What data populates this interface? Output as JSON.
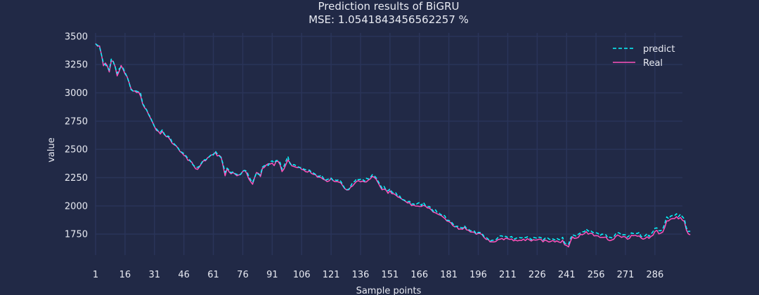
{
  "chart_data": {
    "type": "line",
    "title": "Prediction results of BiGRU",
    "subtitle": "MSE: 1.0541843456562257 %",
    "xlabel": "Sample points",
    "ylabel": "value",
    "xlim": [
      1,
      300
    ],
    "ylim": [
      1565,
      3530
    ],
    "x_ticks": [
      "1",
      "16",
      "31",
      "46",
      "61",
      "76",
      "91",
      "106",
      "121",
      "136",
      "151",
      "166",
      "181",
      "196",
      "211",
      "226",
      "241",
      "256",
      "271",
      "286"
    ],
    "y_ticks": [
      "1750",
      "2000",
      "2250",
      "2500",
      "2750",
      "3000",
      "3250",
      "3500"
    ],
    "grid": true,
    "legend_position": "top-right",
    "colors": {
      "background": "#212946",
      "grid": "#2A3459",
      "text": "#e8eaf2",
      "predict": "#08F7FE",
      "real": "#FE53BB"
    },
    "series": [
      {
        "name": "predict",
        "style": "dashed",
        "values": [
          3432,
          3421,
          3407,
          3335,
          3263,
          3248,
          3229,
          3201,
          3298,
          3275,
          3228,
          3172,
          3212,
          3228,
          3220,
          3179,
          3143,
          3095,
          3030,
          3016,
          3021,
          3014,
          3008,
          2993,
          2904,
          2877,
          2849,
          2811,
          2783,
          2739,
          2702,
          2681,
          2660,
          2652,
          2672,
          2637,
          2613,
          2618,
          2604,
          2562,
          2550,
          2532,
          2513,
          2484,
          2474,
          2462,
          2443,
          2421,
          2405,
          2376,
          2358,
          2342,
          2341,
          2352,
          2380,
          2408,
          2406,
          2419,
          2436,
          2459,
          2450,
          2485,
          2460,
          2444,
          2425,
          2369,
          2295,
          2334,
          2317,
          2293,
          2301,
          2285,
          2279,
          2269,
          2282,
          2310,
          2314,
          2308,
          2265,
          2231,
          2208,
          2251,
          2292,
          2279,
          2275,
          2343,
          2356,
          2356,
          2358,
          2389,
          2399,
          2381,
          2401,
          2401,
          2384,
          2323,
          2353,
          2396,
          2437,
          2375,
          2356,
          2366,
          2357,
          2348,
          2340,
          2337,
          2326,
          2320,
          2317,
          2316,
          2297,
          2291,
          2280,
          2265,
          2261,
          2273,
          2247,
          2226,
          2234,
          2239,
          2247,
          2225,
          2229,
          2225,
          2232,
          2215,
          2185,
          2153,
          2144,
          2147,
          2175,
          2208,
          2216,
          2240,
          2231,
          2235,
          2238,
          2218,
          2245,
          2237,
          2251,
          2276,
          2266,
          2248,
          2218,
          2186,
          2156,
          2172,
          2140,
          2133,
          2150,
          2123,
          2111,
          2115,
          2083,
          2087,
          2055,
          2054,
          2044,
          2038,
          2041,
          2015,
          2018,
          2007,
          2022,
          2029,
          2004,
          2031,
          2004,
          1993,
          1995,
          1982,
          1952,
          1970,
          1944,
          1938,
          1921,
          1923,
          1910,
          1874,
          1872,
          1863,
          1843,
          1816,
          1820,
          1818,
          1809,
          1803,
          1824,
          1800,
          1793,
          1781,
          1777,
          1777,
          1751,
          1766,
          1765,
          1752,
          1728,
          1721,
          1707,
          1687,
          1696,
          1696,
          1701,
          1720,
          1735,
          1735,
          1723,
          1731,
          1720,
          1723,
          1729,
          1704,
          1712,
          1719,
          1720,
          1716,
          1723,
          1719,
          1726,
          1720,
          1700,
          1722,
          1718,
          1713,
          1723,
          1719,
          1697,
          1713,
          1721,
          1707,
          1700,
          1708,
          1698,
          1714,
          1702,
          1703,
          1722,
          1673,
          1660,
          1661,
          1711,
          1744,
          1738,
          1731,
          1750,
          1760,
          1771,
          1771,
          1795,
          1777,
          1785,
          1770,
          1761,
          1762,
          1757,
          1737,
          1751,
          1746,
          1745,
          1716,
          1723,
          1717,
          1725,
          1754,
          1764,
          1759,
          1741,
          1746,
          1744,
          1723,
          1739,
          1761,
          1755,
          1757,
          1756,
          1765,
          1728,
          1728,
          1735,
          1755,
          1730,
          1749,
          1772,
          1802,
          1805,
          1781,
          1780,
          1795,
          1844,
          1903,
          1886,
          1909,
          1916,
          1914,
          1931,
          1904,
          1926,
          1904,
          1885,
          1807,
          1774,
          1776
        ]
      },
      {
        "name": "Real",
        "style": "solid",
        "values": [
          3437,
          3413,
          3415,
          3338,
          3240,
          3264,
          3237,
          3185,
          3283,
          3279,
          3231,
          3150,
          3190,
          3242,
          3209,
          3168,
          3145,
          3095,
          3038,
          3016,
          3016,
          3002,
          3006,
          2970,
          2902,
          2868,
          2849,
          2808,
          2775,
          2741,
          2702,
          2668,
          2660,
          2636,
          2660,
          2633,
          2613,
          2611,
          2586,
          2555,
          2541,
          2532,
          2510,
          2482,
          2469,
          2447,
          2438,
          2404,
          2402,
          2387,
          2355,
          2328,
          2323,
          2347,
          2376,
          2400,
          2399,
          2424,
          2437,
          2450,
          2456,
          2473,
          2442,
          2447,
          2431,
          2351,
          2266,
          2329,
          2302,
          2284,
          2295,
          2282,
          2267,
          2274,
          2280,
          2305,
          2314,
          2289,
          2242,
          2215,
          2191,
          2248,
          2295,
          2287,
          2259,
          2332,
          2341,
          2362,
          2373,
          2371,
          2378,
          2356,
          2394,
          2394,
          2366,
          2303,
          2327,
          2367,
          2407,
          2382,
          2354,
          2349,
          2343,
          2338,
          2342,
          2323,
          2319,
          2303,
          2299,
          2310,
          2287,
          2279,
          2277,
          2254,
          2254,
          2249,
          2236,
          2229,
          2215,
          2221,
          2244,
          2224,
          2214,
          2216,
          2210,
          2203,
          2176,
          2152,
          2141,
          2143,
          2166,
          2177,
          2198,
          2218,
          2222,
          2213,
          2219,
          2212,
          2212,
          2228,
          2240,
          2261,
          2252,
          2235,
          2204,
          2171,
          2143,
          2149,
          2140,
          2111,
          2133,
          2108,
          2107,
          2095,
          2079,
          2073,
          2060,
          2051,
          2039,
          2026,
          2028,
          2002,
          2007,
          1999,
          1998,
          1996,
          1995,
          2004,
          1999,
          1983,
          1981,
          1967,
          1946,
          1940,
          1931,
          1922,
          1916,
          1902,
          1888,
          1866,
          1861,
          1851,
          1826,
          1815,
          1817,
          1794,
          1797,
          1794,
          1813,
          1789,
          1784,
          1769,
          1769,
          1766,
          1749,
          1757,
          1755,
          1744,
          1720,
          1704,
          1704,
          1682,
          1682,
          1681,
          1686,
          1702,
          1705,
          1712,
          1700,
          1715,
          1710,
          1703,
          1707,
          1691,
          1698,
          1690,
          1696,
          1694,
          1706,
          1693,
          1710,
          1700,
          1689,
          1701,
          1697,
          1699,
          1706,
          1704,
          1682,
          1699,
          1690,
          1680,
          1686,
          1694,
          1681,
          1690,
          1681,
          1676,
          1696,
          1656,
          1650,
          1637,
          1687,
          1726,
          1712,
          1715,
          1722,
          1749,
          1745,
          1754,
          1772,
          1750,
          1757,
          1757,
          1735,
          1737,
          1735,
          1721,
          1722,
          1721,
          1725,
          1700,
          1692,
          1698,
          1705,
          1730,
          1742,
          1733,
          1721,
          1730,
          1724,
          1705,
          1712,
          1739,
          1736,
          1740,
          1732,
          1735,
          1715,
          1706,
          1712,
          1727,
          1713,
          1730,
          1740,
          1773,
          1783,
          1752,
          1759,
          1769,
          1810,
          1866,
          1868,
          1883,
          1888,
          1888,
          1905,
          1885,
          1898,
          1874,
          1864,
          1788,
          1752,
          1744
        ]
      }
    ]
  }
}
